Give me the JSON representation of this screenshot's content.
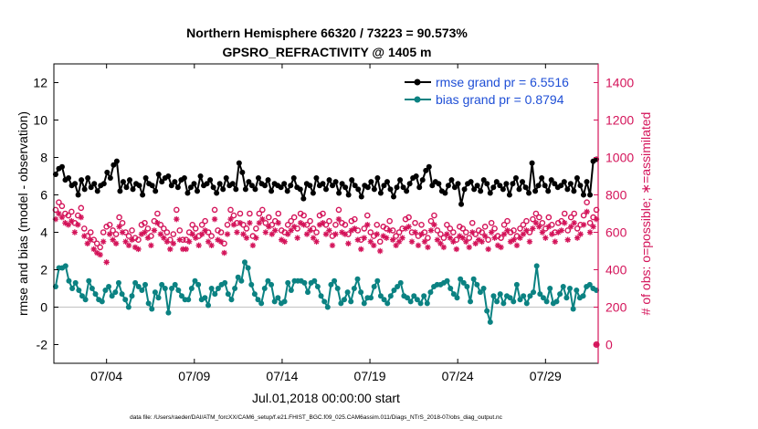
{
  "chart_data": {
    "type": "line",
    "title_line1": "Northern Hemisphere 66320 / 73223 = 90.573%",
    "title_line2": "GPSRO_REFRACTIVITY @ 1405 m",
    "xlabel": "Jul.01,2018 00:00:00 start",
    "ylabel_left": "rmse and bias (model - observation)",
    "ylabel_right": "# of obs: o=possible; ∗=assimilated",
    "footer": "data file: /Users/raeder/DAI/ATM_forcXX/CAM6_setup/f.e21.FHIST_BGC.f09_025.CAM6assim.011/Diags_NTrS_2018-07/obs_diag_output.nc",
    "xlim": [
      1.0,
      32.0
    ],
    "ylim_left": [
      -3,
      13
    ],
    "ylim_right": [
      -100,
      1500
    ],
    "x_ticks": [
      {
        "value": 4,
        "label": "07/04"
      },
      {
        "value": 9,
        "label": "07/09"
      },
      {
        "value": 14,
        "label": "07/14"
      },
      {
        "value": 19,
        "label": "07/19"
      },
      {
        "value": 24,
        "label": "07/24"
      },
      {
        "value": 29,
        "label": "07/29"
      }
    ],
    "y_ticks_left": [
      -2,
      0,
      2,
      4,
      6,
      8,
      10,
      12
    ],
    "y_ticks_right": [
      0,
      200,
      400,
      600,
      800,
      1000,
      1200,
      1400
    ],
    "zero_line": 0,
    "colors": {
      "rmse": "#000000",
      "bias": "#0b8282",
      "obs": "#d4145a",
      "zero": "#c8c8c8"
    },
    "series": [
      {
        "name": "rmse grand pr = 6.5516",
        "axis": "left",
        "marker": "dot",
        "values": [
          7.1,
          7.4,
          7.5,
          6.8,
          6.9,
          6.5,
          6.6,
          6.0,
          6.8,
          6.3,
          6.9,
          6.4,
          6.6,
          6.2,
          6.5,
          6.6,
          7.2,
          6.9,
          7.6,
          7.8,
          6.2,
          6.7,
          6.4,
          6.8,
          6.3,
          6.6,
          6.5,
          6.0,
          6.9,
          6.6,
          6.5,
          6.2,
          7.1,
          6.7,
          6.9,
          7.0,
          6.5,
          6.7,
          6.4,
          6.8,
          6.9,
          6.1,
          6.4,
          6.6,
          6.2,
          7.0,
          6.5,
          6.6,
          6.8,
          6.4,
          6.1,
          6.6,
          6.3,
          6.9,
          6.5,
          6.6,
          6.3,
          7.7,
          7.2,
          6.3,
          6.7,
          6.5,
          6.3,
          6.9,
          6.6,
          6.5,
          6.8,
          6.2,
          6.6,
          6.5,
          6.4,
          6.6,
          6.2,
          6.5,
          6.9,
          6.4,
          6.3,
          5.8,
          6.6,
          6.5,
          6.1,
          6.9,
          6.5,
          6.6,
          6.3,
          6.8,
          6.5,
          6.7,
          6.1,
          6.6,
          6.4,
          6.0,
          6.8,
          6.5,
          6.3,
          5.9,
          6.5,
          6.4,
          6.7,
          6.3,
          6.9,
          6.1,
          6.5,
          6.7,
          6.3,
          5.9,
          6.4,
          6.8,
          6.4,
          6.2,
          6.6,
          6.9,
          7.0,
          6.4,
          6.8,
          7.3,
          7.5,
          6.5,
          6.7,
          6.6,
          6.2,
          6.1,
          6.5,
          6.8,
          6.4,
          6.6,
          5.5,
          6.3,
          6.6,
          6.7,
          6.3,
          6.5,
          6.2,
          6.8,
          6.6,
          6.1,
          6.4,
          6.7,
          6.5,
          6.3,
          6.6,
          6.0,
          6.6,
          6.9,
          6.3,
          6.7,
          6.4,
          6.1,
          7.7,
          6.2,
          6.5,
          6.9,
          6.5,
          6.2,
          6.8,
          6.6,
          6.4,
          6.5,
          6.7,
          6.3,
          6.6,
          6.2,
          6.9,
          6.5,
          6.0,
          6.7,
          6.0,
          7.8,
          7.9
        ]
      },
      {
        "name": "bias grand pr = 0.8794",
        "axis": "left",
        "marker": "dot",
        "values": [
          1.1,
          2.1,
          2.1,
          2.2,
          1.4,
          1.0,
          1.3,
          0.9,
          0.6,
          0.4,
          1.4,
          1.0,
          0.7,
          0.4,
          0.3,
          0.9,
          1.1,
          0.6,
          0.8,
          1.3,
          0.7,
          0.4,
          0.0,
          0.6,
          1.3,
          1.1,
          0.9,
          1.2,
          0.2,
          -0.1,
          0.8,
          0.5,
          1.2,
          1.0,
          -0.3,
          1.0,
          1.2,
          0.9,
          0.6,
          0.4,
          0.4,
          1.0,
          1.4,
          1.2,
          0.4,
          0.5,
          0.1,
          1.0,
          0.7,
          1.0,
          1.2,
          1.3,
          0.7,
          0.4,
          1.0,
          1.6,
          1.4,
          2.4,
          2.1,
          1.2,
          0.7,
          0.4,
          0.2,
          1.0,
          1.4,
          1.2,
          0.3,
          0.5,
          0.2,
          0.3,
          1.3,
          0.9,
          1.4,
          1.4,
          1.4,
          1.3,
          0.8,
          1.3,
          1.4,
          1.1,
          0.6,
          0.3,
          0.0,
          1.2,
          1.4,
          1.0,
          0.2,
          0.4,
          0.8,
          0.3,
          1.0,
          1.5,
          0.8,
          0.2,
          0.5,
          0.5,
          1.1,
          1.4,
          0.6,
          0.4,
          0.2,
          0.6,
          0.9,
          1.1,
          1.3,
          0.6,
          0.5,
          0.3,
          0.6,
          0.4,
          0.2,
          0.6,
          0.2,
          0.8,
          1.1,
          1.2,
          1.2,
          1.3,
          1.4,
          1.0,
          0.7,
          0.5,
          1.5,
          1.3,
          1.1,
          0.3,
          1.5,
          1.2,
          0.8,
          1.0,
          -0.2,
          -0.8,
          0.6,
          0.3,
          0.7,
          0.2,
          0.6,
          0.5,
          0.3,
          1.2,
          0.4,
          0.6,
          0.2,
          0.6,
          0.8,
          2.2,
          0.7,
          0.5,
          0.3,
          1.0,
          0.2,
          0.3,
          0.7,
          1.1,
          0.5,
          1.0,
          -0.1,
          0.9,
          0.5,
          0.6,
          1.1,
          1.2,
          1.0,
          0.9
        ]
      },
      {
        "name": "possible",
        "axis": "right",
        "marker": "circle",
        "values": [
          720,
          760,
          740,
          700,
          690,
          710,
          650,
          690,
          730,
          620,
          580,
          600,
          560,
          540,
          520,
          600,
          630,
          640,
          610,
          590,
          680,
          650,
          600,
          580,
          610,
          570,
          560,
          640,
          650,
          620,
          580,
          660,
          700,
          640,
          620,
          600,
          560,
          590,
          720,
          610,
          560,
          560,
          600,
          640,
          620,
          580,
          640,
          660,
          600,
          580,
          720,
          610,
          600,
          540,
          640,
          720,
          690,
          650,
          700,
          640,
          620,
          700,
          580,
          620,
          700,
          720,
          650,
          680,
          640,
          660,
          700,
          610,
          600,
          640,
          660,
          680,
          620,
          700,
          690,
          640,
          660,
          620,
          600,
          690,
          700,
          640,
          660,
          580,
          640,
          720,
          650,
          640,
          590,
          660,
          670,
          610,
          560,
          620,
          690,
          600,
          580,
          640,
          550,
          630,
          620,
          660,
          610,
          580,
          600,
          620,
          670,
          680,
          600,
          650,
          580,
          640,
          600,
          570,
          660,
          690,
          610,
          590,
          570,
          640,
          620,
          600,
          560,
          630,
          620,
          600,
          570,
          650,
          590,
          610,
          600,
          630,
          560,
          650,
          620,
          580,
          570,
          640,
          660,
          600,
          610,
          580,
          620,
          640,
          660,
          600,
          670,
          700,
          680,
          650,
          620,
          680,
          640,
          600,
          650,
          660,
          700,
          610,
          680,
          700,
          620,
          640,
          690,
          760,
          650,
          680,
          720
        ]
      },
      {
        "name": "assimilated",
        "axis": "right",
        "marker": "asterisk",
        "values": [
          670,
          700,
          680,
          650,
          640,
          660,
          600,
          640,
          680,
          580,
          540,
          560,
          510,
          490,
          480,
          550,
          440,
          590,
          560,
          540,
          630,
          600,
          550,
          530,
          560,
          520,
          510,
          590,
          600,
          570,
          530,
          610,
          650,
          590,
          570,
          550,
          510,
          540,
          670,
          560,
          510,
          510,
          550,
          590,
          570,
          530,
          590,
          610,
          550,
          530,
          670,
          560,
          550,
          490,
          590,
          670,
          640,
          600,
          650,
          590,
          570,
          650,
          530,
          570,
          650,
          670,
          600,
          630,
          590,
          610,
          650,
          560,
          550,
          590,
          610,
          630,
          570,
          650,
          640,
          590,
          610,
          570,
          550,
          640,
          650,
          590,
          610,
          530,
          590,
          670,
          600,
          590,
          540,
          610,
          620,
          560,
          510,
          570,
          640,
          550,
          530,
          590,
          500,
          580,
          570,
          610,
          560,
          530,
          550,
          570,
          620,
          630,
          550,
          600,
          530,
          590,
          550,
          520,
          610,
          640,
          560,
          540,
          520,
          590,
          570,
          550,
          510,
          580,
          570,
          550,
          520,
          600,
          540,
          560,
          550,
          580,
          510,
          600,
          570,
          530,
          520,
          590,
          610,
          550,
          560,
          530,
          570,
          590,
          610,
          550,
          620,
          650,
          630,
          600,
          570,
          630,
          590,
          550,
          600,
          610,
          650,
          560,
          630,
          650,
          570,
          590,
          640,
          710,
          600,
          630,
          670
        ]
      }
    ]
  },
  "last_point_marker": {
    "x": 31.9,
    "right_value": 0
  }
}
